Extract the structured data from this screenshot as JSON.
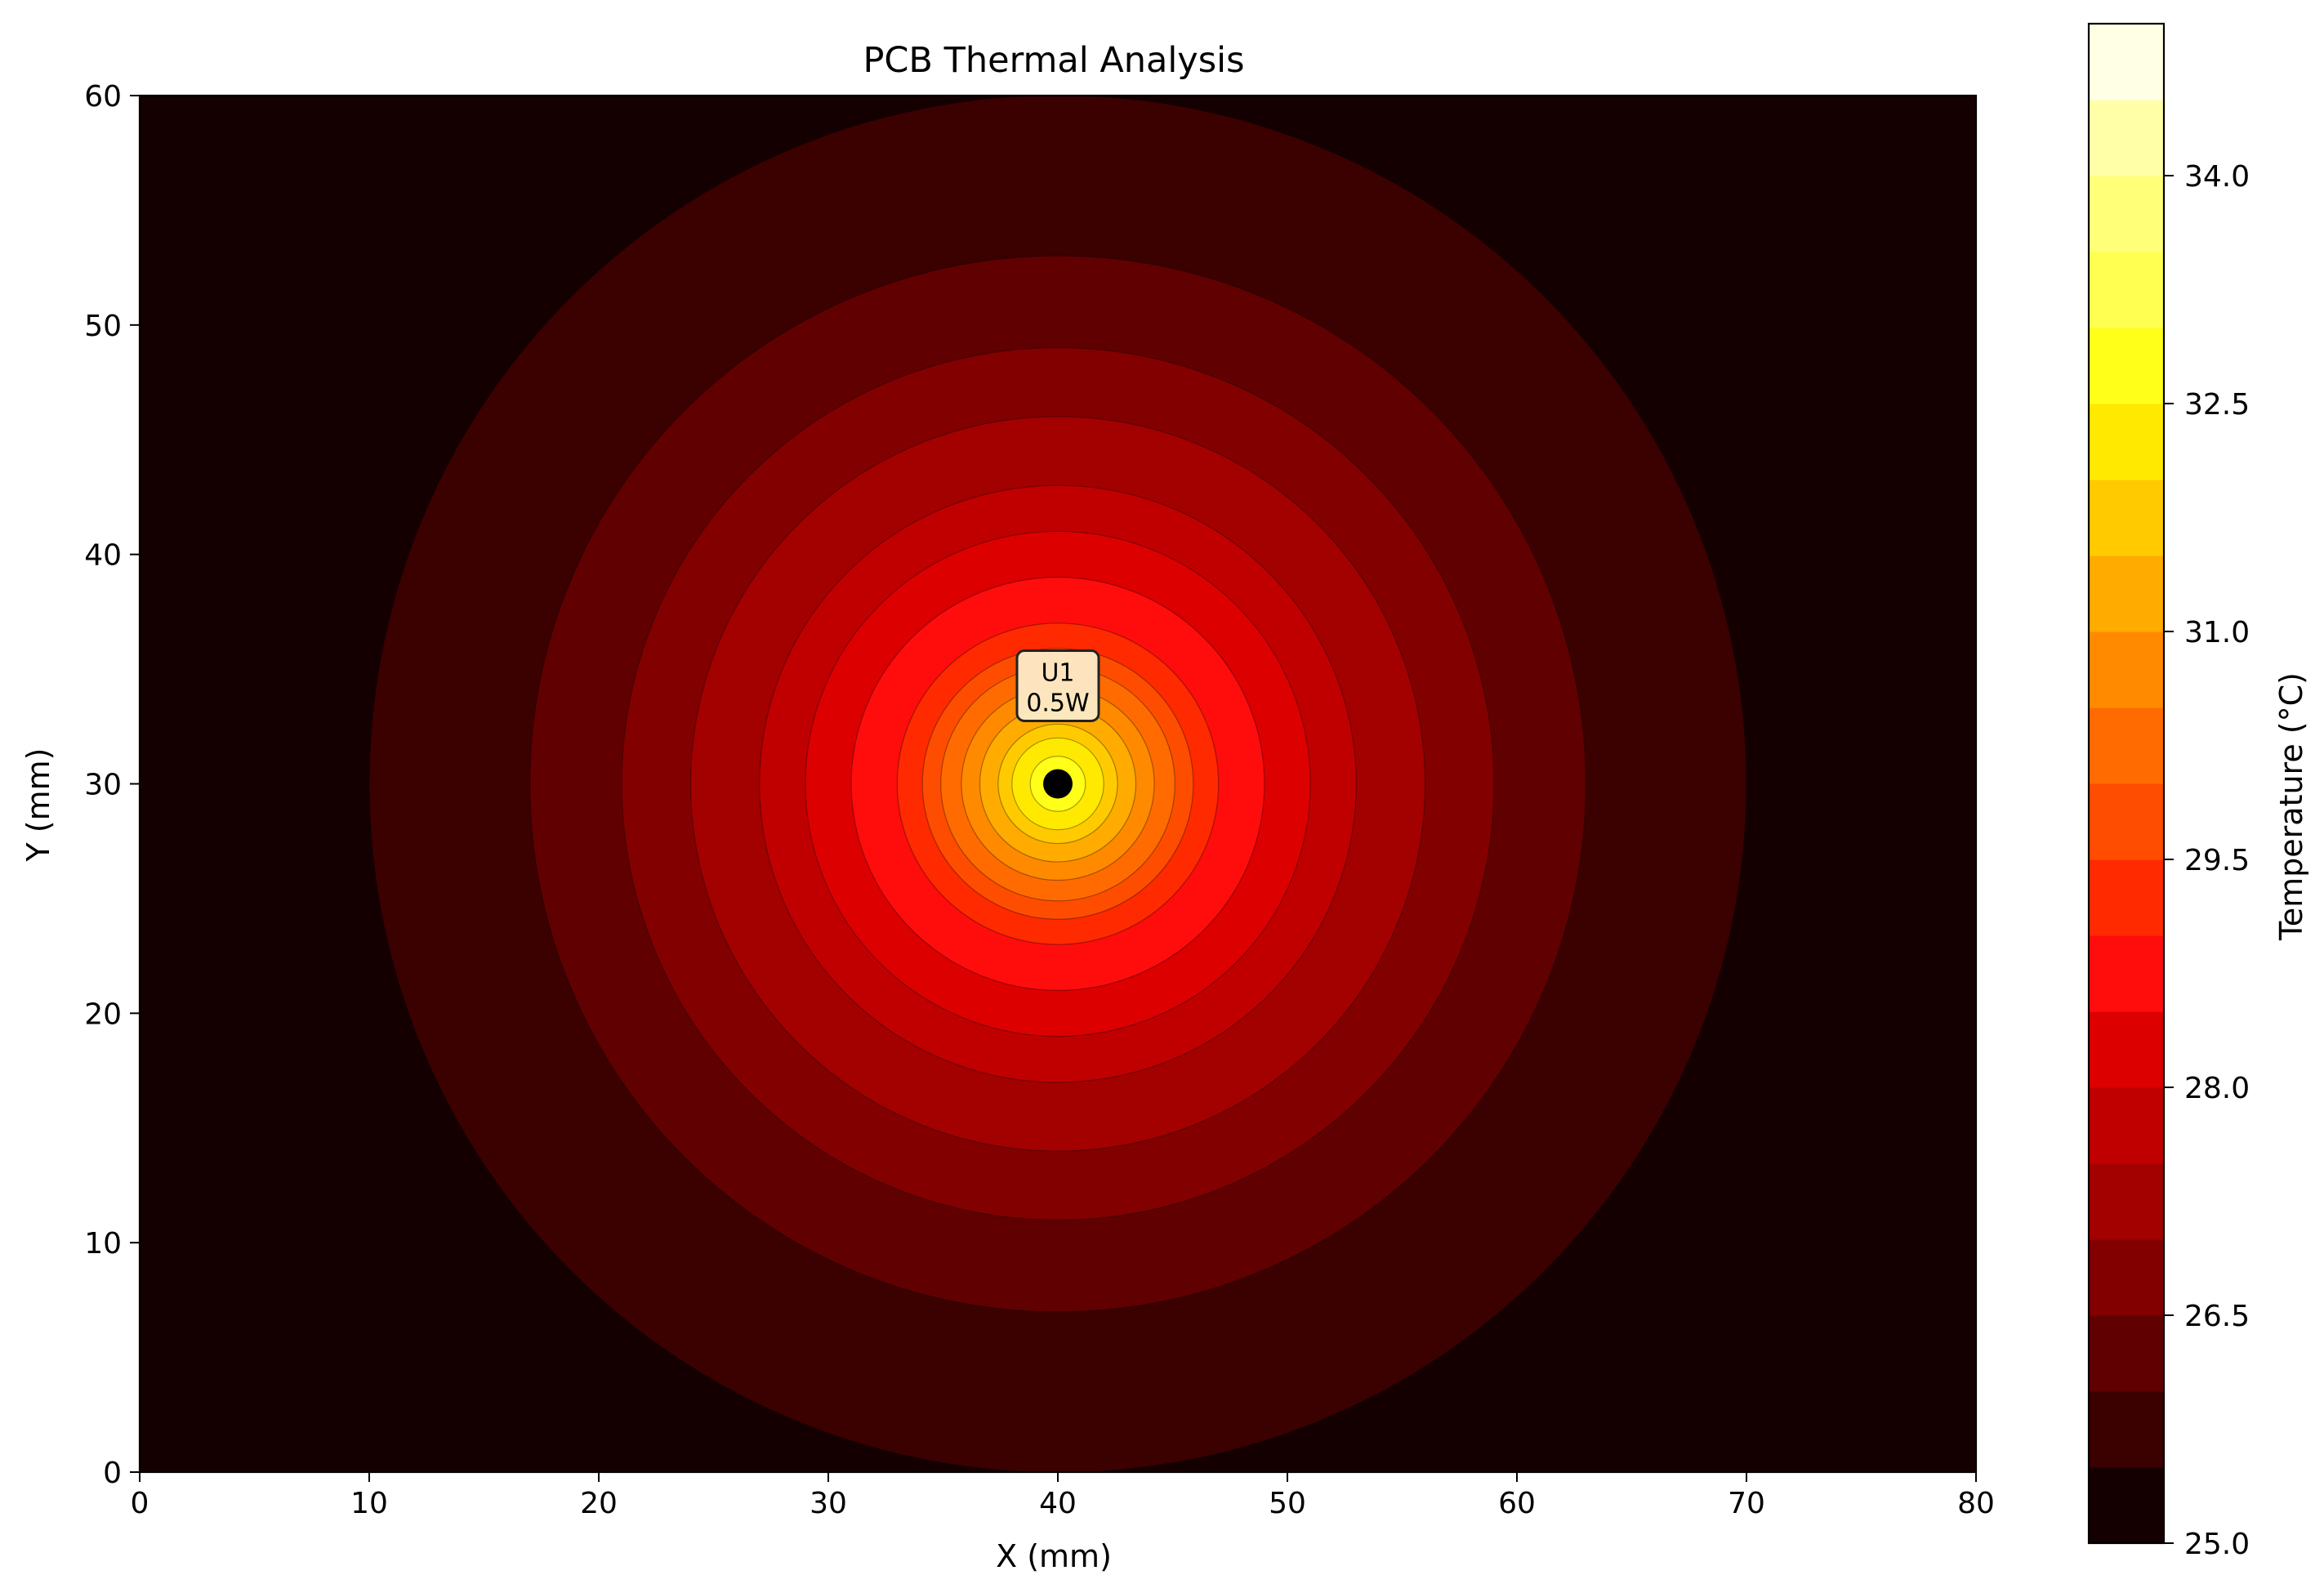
{
  "chart_data": {
    "type": "heatmap",
    "subtype": "filled_contour",
    "title": "PCB Thermal Analysis",
    "xlabel": "X (mm)",
    "ylabel": "Y (mm)",
    "xlim": [
      0,
      80
    ],
    "ylim": [
      0,
      60
    ],
    "x_ticks": [
      0,
      10,
      20,
      30,
      40,
      50,
      60,
      70,
      80
    ],
    "y_ticks": [
      0,
      10,
      20,
      30,
      40,
      50,
      60
    ],
    "grid": false,
    "colormap": "hot",
    "colorbar": {
      "label": "Temperature (°C)",
      "range": [
        25.0,
        35.0
      ],
      "ticks": [
        "25.0",
        "26.5",
        "28.0",
        "29.5",
        "31.0",
        "32.5",
        "34.0"
      ],
      "ticks_values": [
        25.0,
        26.5,
        28.0,
        29.5,
        31.0,
        32.5,
        34.0
      ]
    },
    "levels": [
      25.0,
      25.5,
      26.0,
      26.5,
      27.0,
      27.5,
      28.0,
      28.5,
      29.0,
      29.5,
      30.0,
      30.5,
      31.0,
      31.5,
      32.0,
      32.5,
      33.0,
      33.5,
      34.0,
      34.5,
      35.0
    ],
    "level_colors": [
      "#150000",
      "#3b0000",
      "#610000",
      "#820000",
      "#a30000",
      "#c00000",
      "#dc0000",
      "#ff0d0d",
      "#ff2a00",
      "#ff4d00",
      "#ff6b00",
      "#ff8a00",
      "#ffab00",
      "#ffcb00",
      "#ffe900",
      "#ffff1a",
      "#ffff52",
      "#ffff78",
      "#ffffa8",
      "#ffffe6"
    ],
    "contour_radii_mm": [
      30.0,
      23.0,
      19.0,
      16.0,
      13.0,
      11.0,
      9.0,
      7.0,
      5.9,
      5.1,
      4.2,
      3.4,
      2.6,
      2.0,
      1.2
    ],
    "heat_source": {
      "x": 40,
      "y": 30,
      "name": "U1",
      "power": "0.5W"
    }
  }
}
